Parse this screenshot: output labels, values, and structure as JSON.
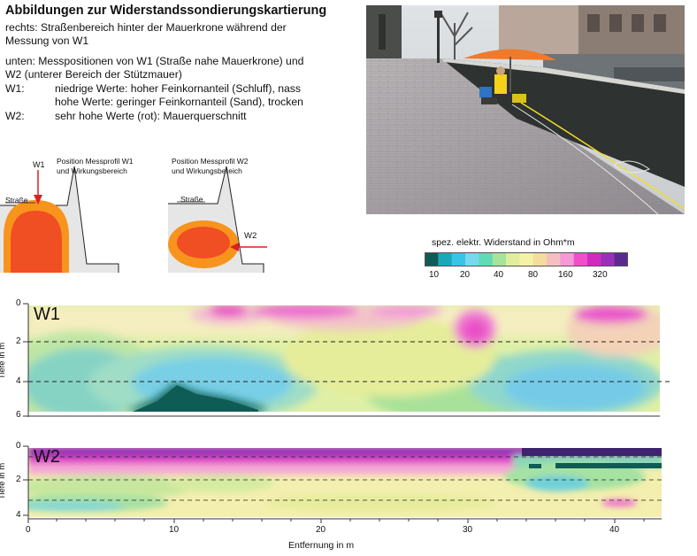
{
  "heading": "Abbildungen zur Widerstandssondierungskartierung",
  "description": {
    "line1": "rechts: Straßenbereich hinter der Mauerkrone während der",
    "line2": "Messung von W1",
    "line3": "unten: Messpositionen von W1 (Straße nahe Mauerkrone) und",
    "line4": "W2 (unterer Bereich der Stützmauer)",
    "w1_label": "W1:",
    "w1_text1": "niedrige Werte: hoher Feinkornanteil (Schluff), nass",
    "w1_text2": "hohe Werte: geringer Feinkornanteil (Sand), trocken",
    "w2_label": "W2:",
    "w2_text": "sehr hohe Werte (rot): Mauerquerschnitt"
  },
  "sketch_w1": {
    "marker": "W1",
    "caption1": "Position Messprofil W1",
    "caption2": "und Wirkungsbereich",
    "street": "Straße"
  },
  "sketch_w2": {
    "marker": "W2",
    "caption1": "Position Messprofil W2",
    "caption2": "und Wirkungsbereich",
    "street": "Straße"
  },
  "legend": {
    "title": "spez. elektr. Widerstand in Ohm*m",
    "ticks": [
      "10",
      "20",
      "40",
      "80",
      "160",
      "320"
    ],
    "colors": [
      "#0e5c55",
      "#1aa8b8",
      "#38c4e6",
      "#78d8ec",
      "#5fdcb6",
      "#a7e39a",
      "#e0ed9c",
      "#f3f2a8",
      "#f4dc9e",
      "#f3bfc1",
      "#f59ad6",
      "#ef4fc8",
      "#cf2cc0",
      "#9b30b8",
      "#5a2b8f"
    ]
  },
  "profiles": {
    "w1": {
      "label": "W1",
      "ylabel": "Tiefe in m",
      "yticks": [
        "0",
        "2",
        "4",
        "6"
      ]
    },
    "w2": {
      "label": "W2",
      "ylabel": "Tiefe in m",
      "yticks": [
        "0",
        "2",
        "4"
      ]
    }
  },
  "xaxis": {
    "label": "Entfernung in m",
    "ticks": [
      "0",
      "10",
      "20",
      "30",
      "40"
    ]
  },
  "colors": {
    "orange": "#f7941d",
    "red": "#f04e23",
    "arrow": "#e31b23"
  }
}
